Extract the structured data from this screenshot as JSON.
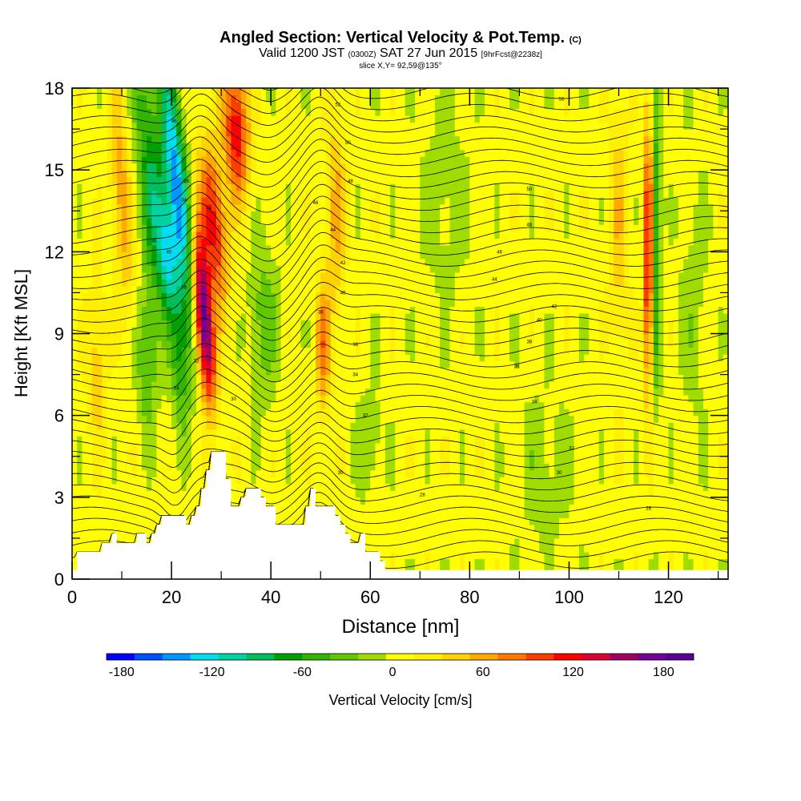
{
  "chart_data": {
    "type": "heatmap",
    "title": "Angled Section: Vertical Velocity & Pot.Temp.",
    "title_tag": "(C)",
    "subtitle_main": "Valid 1200 JST",
    "subtitle_utc": "(0300Z)",
    "subtitle_date": "SAT 27 Jun 2015",
    "subtitle_fcst": "[9hrFcst@2238z]",
    "slice_label": "slice X,Y= 92,59@135°",
    "xlabel": "Distance [nm]",
    "ylabel": "Height [Kft MSL]",
    "xlim": [
      0,
      132
    ],
    "ylim": [
      0,
      18
    ],
    "x_ticks": [
      0,
      20,
      40,
      60,
      80,
      100,
      120
    ],
    "y_ticks": [
      0,
      3,
      6,
      9,
      12,
      15,
      18
    ],
    "colorbar": {
      "label": "Vertical Velocity [cm/s]",
      "min": -190,
      "max": 200,
      "tick_values": [
        -180,
        -120,
        -60,
        0,
        60,
        120,
        180
      ],
      "tick_labels": [
        "-180",
        "-120",
        "-60",
        "0",
        "60",
        "120",
        "180"
      ],
      "colors": [
        "#0000ff",
        "#0050ff",
        "#0096ff",
        "#00dcf0",
        "#00d2a0",
        "#00be5a",
        "#00a000",
        "#32b400",
        "#64c800",
        "#a0dc00",
        "#ffff00",
        "#fff000",
        "#ffd200",
        "#ffaa00",
        "#ff7800",
        "#ff3c00",
        "#ff0000",
        "#dc0032",
        "#a00064",
        "#780096",
        "#5a0096"
      ]
    },
    "velocity_features": [
      {
        "x": 21.0,
        "z": 14.5,
        "w": -150,
        "sx": 2.2,
        "sz": 4.5,
        "tilt": -0.5
      },
      {
        "x": 19.0,
        "z": 12.0,
        "w": -110,
        "sx": 2.0,
        "sz": 2.5,
        "tilt": -0.5
      },
      {
        "x": 15.5,
        "z": 15.0,
        "w": -70,
        "sx": 2.5,
        "sz": 5.0,
        "tilt": -0.3
      },
      {
        "x": 26.5,
        "z": 9.5,
        "w": 190,
        "sx": 1.8,
        "sz": 3.0,
        "tilt": -0.4
      },
      {
        "x": 28.5,
        "z": 13.0,
        "w": 110,
        "sx": 2.5,
        "sz": 3.0,
        "tilt": -0.4
      },
      {
        "x": 33.0,
        "z": 16.5,
        "w": 120,
        "sx": 2.5,
        "sz": 2.5,
        "tilt": -0.2
      },
      {
        "x": 10.0,
        "z": 14.0,
        "w": 60,
        "sx": 2.0,
        "sz": 4.0,
        "tilt": -0.3
      },
      {
        "x": 22.0,
        "z": 8.0,
        "w": -60,
        "sx": 2.0,
        "sz": 2.5,
        "tilt": 0.0
      },
      {
        "x": 15.0,
        "z": 8.0,
        "w": -50,
        "sx": 2.0,
        "sz": 2.5,
        "tilt": 0.0
      },
      {
        "x": 38.5,
        "z": 9.5,
        "w": -40,
        "sx": 3.0,
        "sz": 3.0,
        "tilt": 0.0
      },
      {
        "x": 50.5,
        "z": 8.5,
        "w": 70,
        "sx": 1.5,
        "sz": 2.5,
        "tilt": 0.0
      },
      {
        "x": 53.0,
        "z": 13.5,
        "w": 50,
        "sx": 2.0,
        "sz": 4.0,
        "tilt": 0.0
      },
      {
        "x": 117.5,
        "z": 12.5,
        "w": -70,
        "sx": 1.0,
        "sz": 5.5,
        "tilt": 0.0
      },
      {
        "x": 116.0,
        "z": 12.0,
        "w": 150,
        "sx": 0.8,
        "sz": 5.0,
        "tilt": 0.0
      },
      {
        "x": 110.0,
        "z": 13.0,
        "w": 40,
        "sx": 2.0,
        "sz": 5.0,
        "tilt": 0.0
      },
      {
        "x": 75.0,
        "z": 14.0,
        "w": -20,
        "sx": 5.0,
        "sz": 4.0,
        "tilt": 0.0
      },
      {
        "x": 95.0,
        "z": 4.0,
        "w": -20,
        "sx": 6.0,
        "sz": 3.0,
        "tilt": 0.0
      },
      {
        "x": 60.0,
        "z": 5.0,
        "w": -25,
        "sx": 3.0,
        "sz": 2.0,
        "tilt": 0.0
      },
      {
        "x": 125.0,
        "z": 10.0,
        "w": -20,
        "sx": 3.0,
        "sz": 5.0,
        "tilt": 0.0
      },
      {
        "x": 5.0,
        "z": 8.0,
        "w": 40,
        "sx": 2.0,
        "sz": 3.0,
        "tilt": 0.0
      }
    ],
    "velocity_background": 5,
    "theta_contours": {
      "color": "#000000",
      "count": 44,
      "labels": [
        {
          "x": 20.5,
          "z": 16.8,
          "text": "46"
        },
        {
          "x": 23.0,
          "z": 14.6,
          "text": "26"
        },
        {
          "x": 22.5,
          "z": 13.9,
          "text": "34"
        },
        {
          "x": 16.5,
          "z": 12.4,
          "text": "46"
        },
        {
          "x": 19.5,
          "z": 12.0,
          "text": "40"
        },
        {
          "x": 22.5,
          "z": 10.7,
          "text": "36"
        },
        {
          "x": 25.0,
          "z": 8.0,
          "text": "32"
        },
        {
          "x": 21.0,
          "z": 7.0,
          "text": "34"
        },
        {
          "x": 27.5,
          "z": 13.6,
          "text": "44"
        },
        {
          "x": 32.5,
          "z": 6.6,
          "text": "30"
        },
        {
          "x": 53.5,
          "z": 17.4,
          "text": "52"
        },
        {
          "x": 55.5,
          "z": 16.0,
          "text": "50"
        },
        {
          "x": 56.0,
          "z": 14.6,
          "text": "48"
        },
        {
          "x": 49.0,
          "z": 13.8,
          "text": "46"
        },
        {
          "x": 52.5,
          "z": 12.8,
          "text": "44"
        },
        {
          "x": 54.5,
          "z": 11.6,
          "text": "42"
        },
        {
          "x": 54.5,
          "z": 10.5,
          "text": "40"
        },
        {
          "x": 50.0,
          "z": 9.8,
          "text": "38"
        },
        {
          "x": 57.0,
          "z": 8.6,
          "text": "36"
        },
        {
          "x": 57.0,
          "z": 7.5,
          "text": "34"
        },
        {
          "x": 59.0,
          "z": 6.0,
          "text": "32"
        },
        {
          "x": 54.0,
          "z": 3.9,
          "text": "30"
        },
        {
          "x": 70.5,
          "z": 3.1,
          "text": "28"
        },
        {
          "x": 98.5,
          "z": 17.6,
          "text": "56"
        },
        {
          "x": 92.0,
          "z": 14.3,
          "text": "50"
        },
        {
          "x": 92.0,
          "z": 13.0,
          "text": "48"
        },
        {
          "x": 86.0,
          "z": 12.0,
          "text": "46"
        },
        {
          "x": 85.0,
          "z": 11.0,
          "text": "44"
        },
        {
          "x": 97.0,
          "z": 10.0,
          "text": "42"
        },
        {
          "x": 94.0,
          "z": 9.5,
          "text": "40"
        },
        {
          "x": 92.0,
          "z": 8.7,
          "text": "38"
        },
        {
          "x": 89.5,
          "z": 7.8,
          "text": "36"
        },
        {
          "x": 93.0,
          "z": 6.5,
          "text": "34"
        },
        {
          "x": 100.5,
          "z": 4.8,
          "text": "32"
        },
        {
          "x": 98.0,
          "z": 3.9,
          "text": "30"
        },
        {
          "x": 116.0,
          "z": 2.6,
          "text": "28"
        }
      ]
    },
    "terrain": {
      "color": "#ffffff",
      "x": [
        0,
        1,
        1,
        6,
        6,
        8,
        8,
        9,
        9,
        13,
        13,
        15,
        15,
        16,
        16,
        17,
        17,
        18,
        18,
        23,
        23,
        24,
        24,
        25,
        25,
        26,
        26,
        27,
        27,
        28,
        28,
        31,
        31,
        32,
        32,
        34,
        34,
        35,
        35,
        38,
        38,
        39,
        39,
        41,
        41,
        47,
        47,
        48,
        48,
        49,
        49,
        53,
        53,
        54,
        54,
        55,
        55,
        56,
        56,
        58,
        58,
        59,
        59,
        62,
        62,
        63,
        63,
        66,
        66,
        69,
        69,
        72,
        72,
        132
      ],
      "z": [
        0.33,
        0.33,
        1.0,
        1.0,
        1.33,
        1.33,
        1.67,
        1.67,
        1.33,
        1.33,
        1.67,
        1.67,
        1.33,
        1.33,
        1.67,
        1.67,
        2.0,
        2.0,
        2.33,
        2.33,
        2.0,
        2.0,
        2.33,
        2.33,
        2.67,
        2.67,
        3.33,
        3.33,
        4.0,
        4.0,
        4.67,
        4.67,
        3.67,
        3.67,
        2.67,
        2.67,
        3.0,
        3.0,
        3.33,
        3.33,
        3.0,
        3.0,
        2.67,
        2.67,
        2.0,
        2.0,
        2.67,
        2.67,
        3.33,
        3.33,
        2.67,
        2.67,
        2.33,
        2.33,
        2.0,
        2.0,
        1.67,
        1.67,
        1.33,
        1.33,
        1.67,
        1.67,
        1.0,
        1.0,
        0.67,
        0.67,
        0.33,
        0.33,
        0.33,
        0.33,
        0.33,
        0.33,
        0.33,
        0.33
      ]
    }
  }
}
